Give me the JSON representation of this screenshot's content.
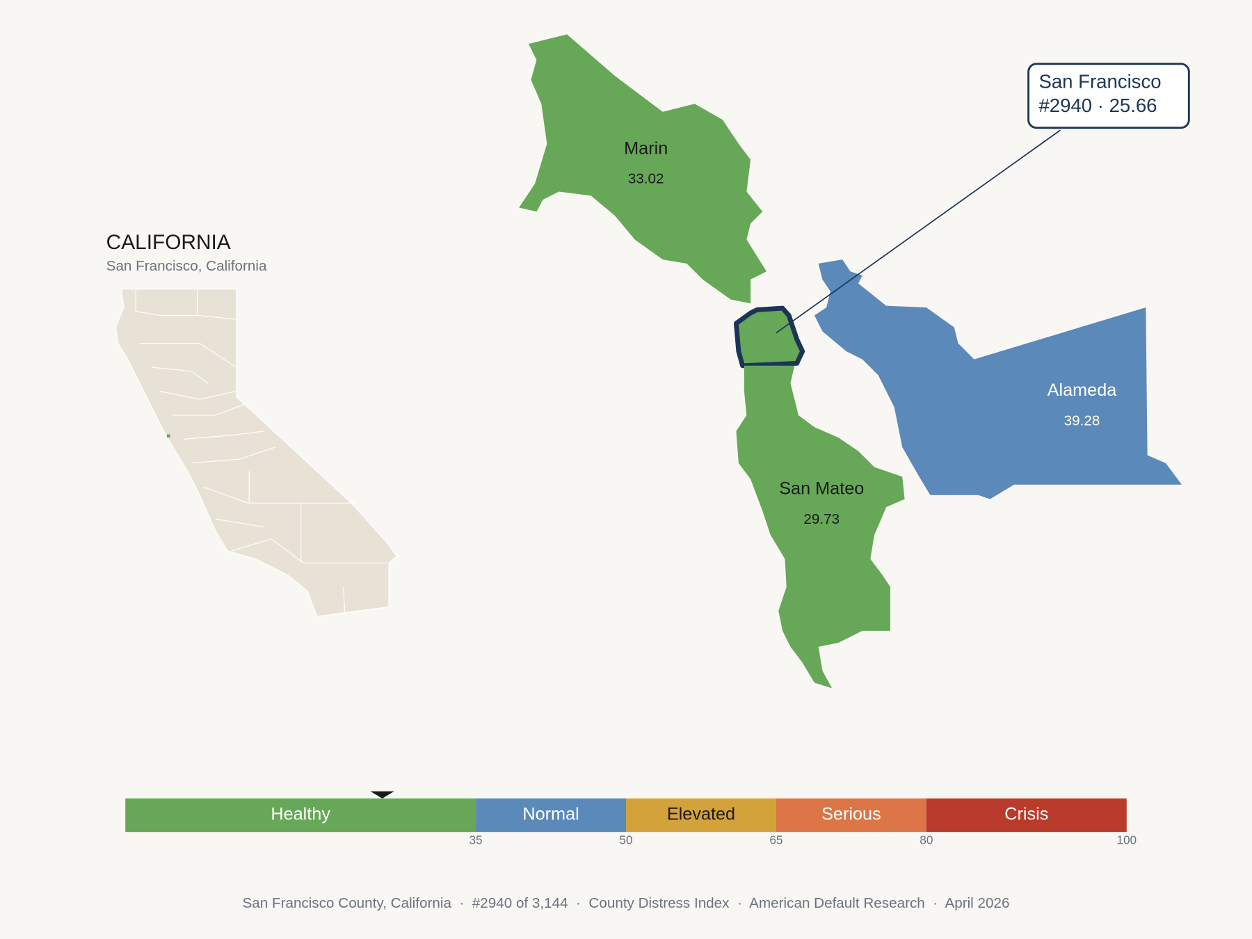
{
  "inset": {
    "title": "CALIFORNIA",
    "subtitle": "San Francisco, California"
  },
  "counties": [
    {
      "name": "Marin",
      "value": 33.02
    },
    {
      "name": "San Francisco",
      "value": 25.66
    },
    {
      "name": "San Mateo",
      "value": 29.73
    },
    {
      "name": "Alameda",
      "value": 39.28
    }
  ],
  "callout": {
    "title": "San Francisco",
    "detail": "#2940 · 25.66"
  },
  "scale": {
    "range": [
      0,
      100
    ],
    "ticks": [
      35,
      50,
      65,
      80,
      100
    ],
    "bands": [
      {
        "label": "Healthy",
        "color": "#66a758"
      },
      {
        "label": "Normal",
        "color": "#5b89b9"
      },
      {
        "label": "Elevated",
        "color": "#d4a23a"
      },
      {
        "label": "Serious",
        "color": "#dc7647"
      },
      {
        "label": "Crisis",
        "color": "#b93b2b"
      }
    ]
  },
  "footer": "San Francisco County, California  ·  #2940 of 3,144  ·  County Distress Index  ·  American Default Research  ·  April 2026"
}
